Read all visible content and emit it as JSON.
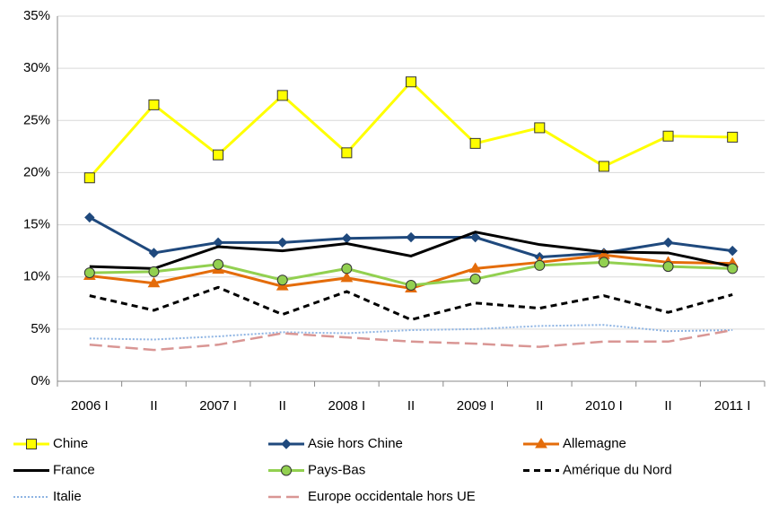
{
  "chart_data": {
    "type": "line",
    "categories": [
      "2006 I",
      "II",
      "2007  I",
      "II",
      "2008  I",
      "II",
      "2009  I",
      "II",
      "2010  I",
      "II",
      "2011  I"
    ],
    "ylim": [
      0,
      35
    ],
    "yticks": [
      {
        "value": 0,
        "label": "0%"
      },
      {
        "value": 5,
        "label": "5%"
      },
      {
        "value": 10,
        "label": "10%"
      },
      {
        "value": 15,
        "label": "15%"
      },
      {
        "value": 20,
        "label": "20%"
      },
      {
        "value": 25,
        "label": "25%"
      },
      {
        "value": 30,
        "label": "30%"
      },
      {
        "value": 35,
        "label": "35%"
      }
    ],
    "grid": true,
    "legend": "bottom",
    "series": [
      {
        "name": "Chine",
        "color": "#ffff00",
        "marker": "square",
        "dash": "solid",
        "values": [
          19.5,
          26.5,
          21.7,
          27.4,
          21.9,
          28.7,
          22.8,
          24.3,
          20.6,
          23.5,
          23.4
        ]
      },
      {
        "name": "Asie hors Chine",
        "color": "#1f497d",
        "marker": "diamond",
        "dash": "solid",
        "values": [
          15.7,
          12.3,
          13.3,
          13.3,
          13.7,
          13.8,
          13.8,
          11.9,
          12.3,
          13.3,
          12.5
        ]
      },
      {
        "name": "Allemagne",
        "color": "#e46c0a",
        "marker": "triangle",
        "dash": "solid",
        "values": [
          10.1,
          9.4,
          10.7,
          9.1,
          9.9,
          8.9,
          10.8,
          11.4,
          12.1,
          11.4,
          11.3
        ]
      },
      {
        "name": "France",
        "color": "#000000",
        "marker": "none",
        "dash": "solid",
        "values": [
          11.0,
          10.8,
          12.9,
          12.5,
          13.2,
          12.0,
          14.3,
          13.1,
          12.4,
          12.3,
          11.0
        ]
      },
      {
        "name": "Pays-Bas",
        "color": "#92d050",
        "marker": "circle",
        "dash": "solid",
        "values": [
          10.4,
          10.5,
          11.2,
          9.7,
          10.8,
          9.2,
          9.8,
          11.1,
          11.4,
          11.0,
          10.8
        ]
      },
      {
        "name": "Amérique du Nord",
        "color": "#000000",
        "marker": "none",
        "dash": "dashed",
        "values": [
          8.2,
          6.8,
          9.0,
          6.4,
          8.6,
          5.9,
          7.5,
          7.0,
          8.2,
          6.6,
          8.3
        ]
      },
      {
        "name": "Italie",
        "color": "#8eb4e3",
        "marker": "none",
        "dash": "dotted",
        "values": [
          4.1,
          4.0,
          4.3,
          4.7,
          4.6,
          4.9,
          5.0,
          5.3,
          5.4,
          4.8,
          4.9
        ]
      },
      {
        "name": "Europe occidentale hors UE",
        "color": "#d99694",
        "marker": "none",
        "dash": "longdash",
        "values": [
          3.5,
          3.0,
          3.5,
          4.6,
          4.2,
          3.8,
          3.6,
          3.3,
          3.8,
          3.8,
          4.9
        ]
      }
    ]
  }
}
